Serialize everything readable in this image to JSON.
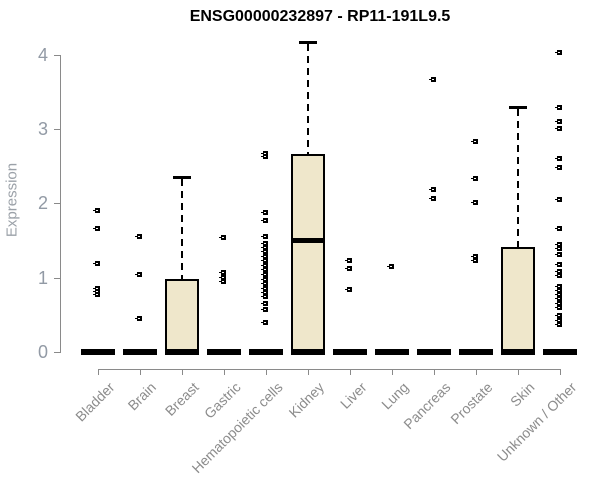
{
  "chart_data": {
    "type": "boxplot",
    "title": "ENSG00000232897 - RP11-191L9.5",
    "ylabel": "Expression",
    "xlabel": "",
    "yticks": [
      0,
      1,
      2,
      3,
      4
    ],
    "ylim": [
      0,
      4.2
    ],
    "grid": false,
    "colors": {
      "box_fill": "#EFE7CB",
      "box_border": "#000000",
      "axis": "#8a8a8a",
      "tick_label": "#929AA5",
      "category_label": "#8C8C8C",
      "title": "#000000"
    },
    "categories": [
      "Bladder",
      "Brain",
      "Breast",
      "Gastric",
      "Hematopoietic cells",
      "Kidney",
      "Liver",
      "Lung",
      "Pancreas",
      "Prostate",
      "Skin",
      "Unknown / Other"
    ],
    "groups": [
      {
        "name": "Bladder",
        "q1": 0,
        "median": 0,
        "q3": 0,
        "whisker_low": 0,
        "whisker_high": 0,
        "outliers": [
          1.9,
          1.65,
          1.19,
          0.85,
          0.81,
          0.77
        ]
      },
      {
        "name": "Brain",
        "q1": 0,
        "median": 0,
        "q3": 0,
        "whisker_low": 0,
        "whisker_high": 0,
        "outliers": [
          1.55,
          1.03,
          0.45
        ]
      },
      {
        "name": "Breast",
        "q1": 0,
        "median": 0,
        "q3": 0.98,
        "whisker_low": 0,
        "whisker_high": 2.35,
        "outliers": []
      },
      {
        "name": "Gastric",
        "q1": 0,
        "median": 0,
        "q3": 0,
        "whisker_low": 0,
        "whisker_high": 0,
        "outliers": [
          1.54,
          1.06,
          1.0,
          0.94
        ]
      },
      {
        "name": "Hematopoietic cells",
        "q1": 0,
        "median": 0,
        "q3": 0,
        "whisker_low": 0,
        "whisker_high": 0,
        "outliers": [
          2.67,
          2.63,
          1.87,
          1.76,
          1.55,
          1.45,
          1.4,
          1.34,
          1.28,
          1.22,
          1.16,
          1.1,
          1.04,
          0.97,
          0.91,
          0.85,
          0.79,
          0.74,
          0.65,
          0.57,
          0.39
        ]
      },
      {
        "name": "Kidney",
        "q1": 0,
        "median": 1.51,
        "q3": 2.66,
        "whisker_low": 0,
        "whisker_high": 4.17,
        "outliers": []
      },
      {
        "name": "Liver",
        "q1": 0,
        "median": 0,
        "q3": 0,
        "whisker_low": 0,
        "whisker_high": 0,
        "outliers": [
          1.23,
          1.12,
          0.84
        ]
      },
      {
        "name": "Lung",
        "q1": 0,
        "median": 0,
        "q3": 0,
        "whisker_low": 0,
        "whisker_high": 0,
        "outliers": [
          1.15
        ]
      },
      {
        "name": "Pancreas",
        "q1": 0,
        "median": 0,
        "q3": 0,
        "whisker_low": 0,
        "whisker_high": 0,
        "outliers": [
          3.66,
          2.18,
          2.06
        ]
      },
      {
        "name": "Prostate",
        "q1": 0,
        "median": 0,
        "q3": 0,
        "whisker_low": 0,
        "whisker_high": 0,
        "outliers": [
          2.83,
          2.33,
          2.0,
          1.28,
          1.22
        ]
      },
      {
        "name": "Skin",
        "q1": 0,
        "median": 0,
        "q3": 1.41,
        "whisker_low": 0,
        "whisker_high": 3.3,
        "outliers": []
      },
      {
        "name": "Unknown / Other",
        "q1": 0,
        "median": 0,
        "q3": 0,
        "whisker_low": 0,
        "whisker_high": 0,
        "outliers": [
          4.02,
          3.29,
          3.1,
          3.0,
          2.6,
          2.47,
          2.04,
          1.65,
          1.44,
          1.38,
          1.31,
          1.17,
          1.08,
          1.02,
          0.87,
          0.82,
          0.77,
          0.71,
          0.65,
          0.59,
          0.48,
          0.42,
          0.36
        ]
      }
    ]
  }
}
